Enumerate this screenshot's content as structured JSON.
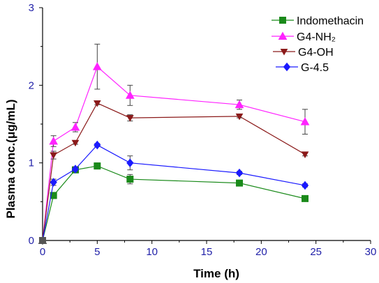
{
  "chart_data": {
    "type": "line",
    "xlabel": "Time (h)",
    "ylabel": "Plasma conc.(μg/mL)",
    "xlim": [
      0,
      30
    ],
    "ylim": [
      0,
      3
    ],
    "x_ticks": [
      "0",
      "5",
      "10",
      "15",
      "20",
      "25",
      "30"
    ],
    "y_ticks": [
      "0",
      "1",
      "2",
      "3"
    ],
    "x_tick_values": [
      0,
      5,
      10,
      15,
      20,
      25,
      30
    ],
    "y_tick_values": [
      0,
      1,
      2,
      3
    ],
    "grid": false,
    "legend_position": "top-right",
    "series": [
      {
        "name": "Indomethacin",
        "name_display": "Indomethacin",
        "color": "#1a8a1a",
        "marker": "square",
        "x": [
          0,
          1,
          3,
          5,
          8,
          18,
          24
        ],
        "y": [
          0,
          0.58,
          0.91,
          0.96,
          0.79,
          0.74,
          0.54
        ],
        "err": [
          0,
          0.04,
          0.03,
          0.04,
          0.06,
          0.03,
          0.03
        ]
      },
      {
        "name": "G4-NH2",
        "name_display": "G4-NH₂",
        "color": "#ff22ff",
        "marker": "triangle-up",
        "x": [
          0,
          1,
          3,
          5,
          8,
          18,
          24
        ],
        "y": [
          0,
          1.28,
          1.46,
          2.24,
          1.87,
          1.75,
          1.53
        ],
        "err": [
          0,
          0.07,
          0.06,
          0.29,
          0.13,
          0.06,
          0.16
        ]
      },
      {
        "name": "G4-OH",
        "name_display": "G4-OH",
        "color": "#8b1a1a",
        "marker": "triangle-down",
        "x": [
          0,
          1,
          3,
          5,
          8,
          18,
          24
        ],
        "y": [
          0,
          1.1,
          1.26,
          1.77,
          1.58,
          1.6,
          1.11
        ],
        "err": [
          0,
          0.05,
          0.02,
          0.02,
          0.04,
          0.02,
          0.02
        ]
      },
      {
        "name": "G-4.5",
        "name_display": "G-4.5",
        "color": "#1a1aff",
        "marker": "diamond",
        "x": [
          0,
          1,
          3,
          5,
          8,
          18,
          24
        ],
        "y": [
          0,
          0.75,
          0.92,
          1.23,
          1.0,
          0.87,
          0.71
        ],
        "err": [
          0,
          0.04,
          0.03,
          0.02,
          0.09,
          0.02,
          0.02
        ]
      }
    ]
  }
}
